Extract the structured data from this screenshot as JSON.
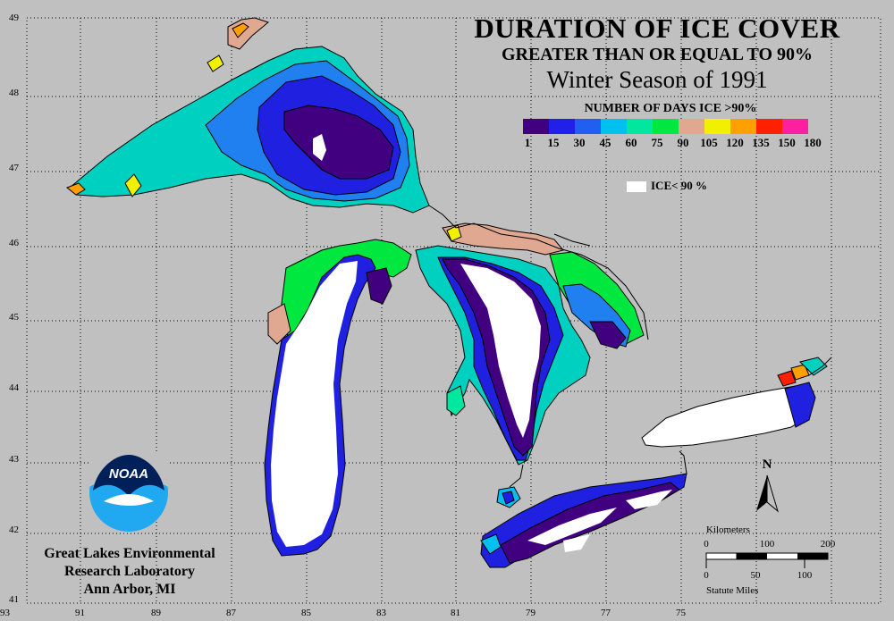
{
  "title": {
    "line1": "DURATION OF ICE COVER",
    "line2": "GREATER THAN OR EQUAL TO 90%",
    "line3": "Winter Season of 1991"
  },
  "legend": {
    "title": "NUMBER OF DAYS ICE >90%",
    "colors": [
      "#400080",
      "#2020e8",
      "#2060f0",
      "#00c0f0",
      "#00e8a0",
      "#00e840",
      "#e0a890",
      "#f0f000",
      "#ffa000",
      "#ff2000",
      "#ff20a0"
    ],
    "ticks": [
      "1",
      "15",
      "30",
      "45",
      "60",
      "75",
      "90",
      "105",
      "120",
      "135",
      "150",
      "180"
    ],
    "ice_key_label": "ICE< 90 %",
    "ice_key_color": "#ffffff"
  },
  "axes": {
    "lat_labels": [
      "49",
      "48",
      "47",
      "46",
      "45",
      "44",
      "43",
      "42",
      "41"
    ],
    "lon_labels": [
      "93",
      "91",
      "89",
      "87",
      "85",
      "83",
      "81",
      "79",
      "77",
      "75"
    ]
  },
  "lab": {
    "line1": "Great Lakes Environmental",
    "line2": "Research Laboratory",
    "line3": "Ann Arbor, MI",
    "logo_text": "NOAA"
  },
  "north_label": "N",
  "scale_bar": {
    "km_label": "Kilometers",
    "km_ticks": [
      "0",
      "100",
      "200"
    ],
    "mi_ticks": [
      "0",
      "50",
      "100"
    ],
    "mi_label": "Statute Miles"
  },
  "colors": {
    "background": "#c0c0c0",
    "land_outline": "#000000",
    "grid": "#000000"
  }
}
